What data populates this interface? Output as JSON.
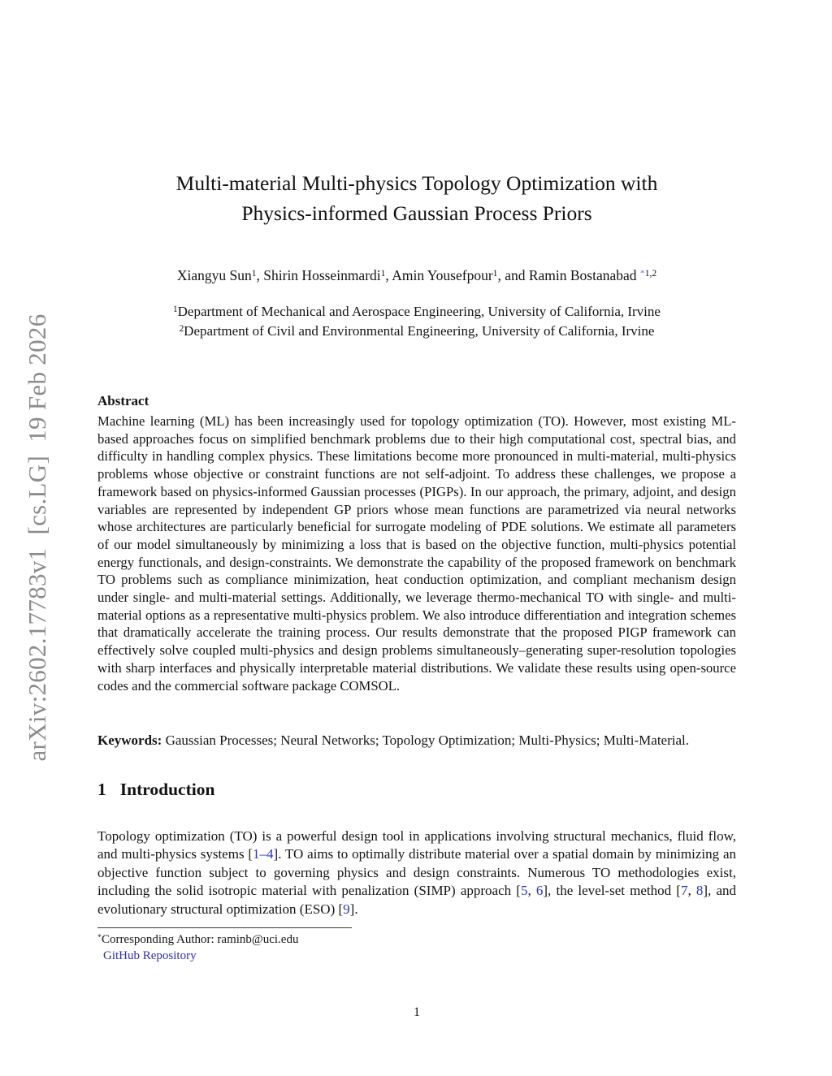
{
  "watermark": {
    "text": "arXiv:2602.17783v1  [cs.LG]  19 Feb 2026"
  },
  "title": {
    "line1": "Multi-material Multi-physics Topology Optimization with",
    "line2": "Physics-informed Gaussian Process Priors"
  },
  "authors": {
    "segments": [
      {
        "t": "Xiangyu Sun"
      },
      {
        "t": "1",
        "s": true
      },
      {
        "t": ", Shirin Hosseinmardi"
      },
      {
        "t": "1",
        "s": true
      },
      {
        "t": ", Amin Yousefpour"
      },
      {
        "t": "1",
        "s": true
      },
      {
        "t": ", and Ramin Bostanabad "
      },
      {
        "t": "*",
        "s": true,
        "c": "star"
      },
      {
        "t": "1,2",
        "s": true
      }
    ]
  },
  "affiliations": {
    "line1": [
      {
        "t": "1",
        "s": true
      },
      {
        "t": "Department of Mechanical and Aerospace Engineering, University of California, Irvine"
      }
    ],
    "line2": [
      {
        "t": "2",
        "s": true
      },
      {
        "t": "Department of Civil and Environmental Engineering, University of California, Irvine"
      }
    ]
  },
  "abstract": {
    "heading": "Abstract",
    "body": "Machine learning (ML) has been increasingly used for topology optimization (TO). However, most existing ML-based approaches focus on simplified benchmark problems due to their high computational cost, spectral bias, and difficulty in handling complex physics. These limitations become more pronounced in multi-material, multi-physics problems whose objective or constraint functions are not self-adjoint. To address these challenges, we propose a framework based on physics-informed Gaussian processes (PIGPs). In our approach, the primary, adjoint, and design variables are represented by independent GP priors whose mean functions are parametrized via neural networks whose architectures are particularly beneficial for surrogate modeling of PDE solutions. We estimate all parameters of our model simultaneously by minimizing a loss that is based on the objective function, multi-physics potential energy functionals, and design-constraints. We demonstrate the capability of the proposed framework on benchmark TO problems such as compliance minimization, heat conduction optimization, and compliant mechanism design under single- and multi-material settings. Additionally, we leverage thermo-mechanical TO with single- and multi-material options as a representative multi-physics problem. We also introduce differentiation and integration schemes that dramatically accelerate the training process. Our results demonstrate that the proposed PIGP framework can effectively solve coupled multi-physics and design problems simultaneously–generating super-resolution topologies with sharp interfaces and physically interpretable material distributions. We validate these results using open-source codes and the commercial software package COMSOL."
  },
  "keywords": {
    "segments": [
      {
        "t": "Keywords:",
        "b": true
      },
      {
        "t": " Gaussian Processes; Neural Networks; Topology Optimization; Multi-Physics; Multi-Material."
      }
    ]
  },
  "section1": {
    "number": "1",
    "title": "Introduction"
  },
  "intro": {
    "segments": [
      {
        "t": "Topology optimization (TO) is a powerful design tool in applications involving structural mechanics, fluid flow, and multi-physics systems ["
      },
      {
        "t": "1–4",
        "c": "cite"
      },
      {
        "t": "].  TO aims to optimally distribute material over a spatial domain by minimizing an objective function subject to governing physics and design constraints.  Numerous TO methodologies exist, including the solid isotropic material with penalization (SIMP) approach ["
      },
      {
        "t": "5",
        "c": "cite"
      },
      {
        "t": ", "
      },
      {
        "t": "6",
        "c": "cite"
      },
      {
        "t": "], the level-set method ["
      },
      {
        "t": "7",
        "c": "cite"
      },
      {
        "t": ", "
      },
      {
        "t": "8",
        "c": "cite"
      },
      {
        "t": "], and evolutionary structural optimization (ESO) ["
      },
      {
        "t": "9",
        "c": "cite"
      },
      {
        "t": "]."
      }
    ]
  },
  "footnote": {
    "line1": [
      {
        "t": "*",
        "s": true
      },
      {
        "t": "Corresponding Author: raminb@uci.edu"
      }
    ],
    "line2": [
      {
        "t": "GitHub Repository",
        "c": "link"
      }
    ]
  },
  "footer": {
    "page_number": "1"
  },
  "colors": {
    "citation_link": "#2533cc",
    "hyperlink": "#2c2cb4",
    "author_star_marker": "#7d7dd2",
    "watermark_gray": "#8c8c8c"
  }
}
